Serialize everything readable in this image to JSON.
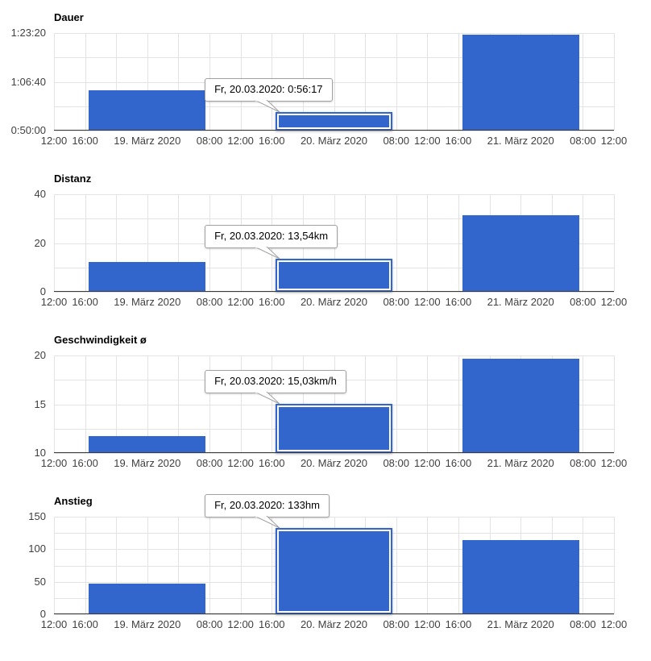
{
  "page": {
    "background": "#ffffff"
  },
  "colors": {
    "bar": "#3366cc",
    "bar_hover_inner_stroke": "#ffffff",
    "grid": "#e3e3e3",
    "axis_line": "#3a3a3a",
    "axis_text": "#404040",
    "title_text": "#000000",
    "tooltip_bg": "#ffffff",
    "tooltip_border": "#a2a2a2"
  },
  "chart_data": {
    "type": "bar",
    "categories": [
      "19. März 2020",
      "20. März 2020",
      "21. März 2020"
    ],
    "x_axis": {
      "total_hours": 72,
      "gridline_every_hours": 4,
      "bar_width_hours": 15,
      "bar_centers_hours": [
        12,
        36,
        60
      ],
      "ticks": [
        {
          "h": 0,
          "label": "12:00"
        },
        {
          "h": 4,
          "label": "16:00"
        },
        {
          "h": 12,
          "label": "19. März 2020"
        },
        {
          "h": 20,
          "label": "08:00"
        },
        {
          "h": 24,
          "label": "12:00"
        },
        {
          "h": 28,
          "label": "16:00"
        },
        {
          "h": 36,
          "label": "20. März 2020"
        },
        {
          "h": 44,
          "label": "08:00"
        },
        {
          "h": 48,
          "label": "12:00"
        },
        {
          "h": 52,
          "label": "16:00"
        },
        {
          "h": 60,
          "label": "21. März 2020"
        },
        {
          "h": 68,
          "label": "08:00"
        },
        {
          "h": 72,
          "label": "12:00"
        }
      ]
    },
    "charts": [
      {
        "title": "Dauer",
        "unit": "h:mm:ss",
        "y_min": 3000,
        "y_max": 5000,
        "y_gridline_step": 500,
        "y_tick_labels": [
          {
            "value": 3000,
            "label": "0:50:00"
          },
          {
            "value": 4000,
            "label": "1:06:40"
          },
          {
            "value": 5000,
            "label": "1:23:20"
          }
        ],
        "values": [
          3830,
          3377,
          4970
        ],
        "hovered_index": 1,
        "tooltip_text": "Fr, 20.03.2020: 0:56:17"
      },
      {
        "title": "Distanz",
        "unit": "km",
        "y_min": 0,
        "y_max": 40,
        "y_gridline_step": 10,
        "y_tick_labels": [
          {
            "value": 0,
            "label": "0"
          },
          {
            "value": 20,
            "label": "20"
          },
          {
            "value": 40,
            "label": "40"
          }
        ],
        "values": [
          12.2,
          13.54,
          31.3
        ],
        "hovered_index": 1,
        "tooltip_text": "Fr, 20.03.2020: 13,54km"
      },
      {
        "title": "Geschwindigkeit ø",
        "unit": "km/h",
        "y_min": 10,
        "y_max": 20,
        "y_gridline_step": 2.5,
        "y_tick_labels": [
          {
            "value": 10,
            "label": "10"
          },
          {
            "value": 15,
            "label": "15"
          },
          {
            "value": 20,
            "label": "20"
          }
        ],
        "values": [
          11.7,
          15.03,
          19.65
        ],
        "hovered_index": 1,
        "tooltip_text": "Fr, 20.03.2020: 15,03km/h"
      },
      {
        "title": "Anstieg",
        "unit": "hm",
        "y_min": 0,
        "y_max": 150,
        "y_gridline_step": 25,
        "y_tick_labels": [
          {
            "value": 0,
            "label": "0"
          },
          {
            "value": 50,
            "label": "50"
          },
          {
            "value": 100,
            "label": "100"
          },
          {
            "value": 150,
            "label": "150"
          }
        ],
        "values": [
          47,
          133,
          114
        ],
        "hovered_index": 1,
        "tooltip_text": "Fr, 20.03.2020: 133hm"
      }
    ]
  }
}
